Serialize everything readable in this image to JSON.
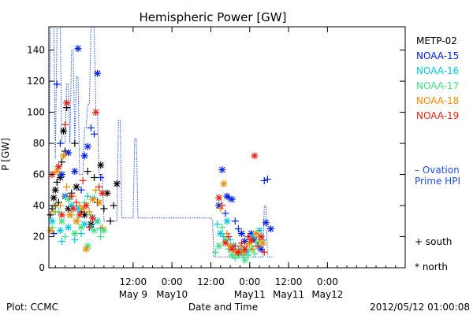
{
  "chart_data": {
    "type": "scatter",
    "title": "Hemispheric Power [GW]",
    "xlabel": "Date and Time",
    "ylabel": "P [GW]",
    "ylim": [
      0,
      155
    ],
    "xlim_hours": [
      -14,
      96
    ],
    "y_ticks": [
      0,
      20,
      40,
      60,
      80,
      100,
      120,
      140
    ],
    "x_ticks": [
      {
        "h": 12,
        "label": "12:00",
        "date": "May 9"
      },
      {
        "h": 24,
        "label": "0:00",
        "date": "May10"
      },
      {
        "h": 36,
        "label": "12:00",
        "date": ""
      },
      {
        "h": 48,
        "label": "0:00",
        "date": "May11"
      },
      {
        "h": 60,
        "label": "12:00",
        "date": "May11"
      },
      {
        "h": 72,
        "label": "0:00",
        "date": "May12"
      }
    ],
    "grid": false,
    "legend_position": "right",
    "symbols": {
      "south": "+",
      "north": "*"
    },
    "series": [
      {
        "name": "METP-02",
        "color": "#000000",
        "points": [
          [
            -13.5,
            34,
            "s"
          ],
          [
            -13,
            38,
            "s"
          ],
          [
            -12.5,
            45,
            "n"
          ],
          [
            -12,
            50,
            "n"
          ],
          [
            -11.5,
            55,
            "s"
          ],
          [
            -11,
            42,
            "s"
          ],
          [
            -10.5,
            58,
            "n"
          ],
          [
            -10,
            68,
            "s"
          ],
          [
            -9.5,
            88,
            "n"
          ],
          [
            -9,
            75,
            "s"
          ],
          [
            -8.5,
            103,
            "s"
          ],
          [
            -8,
            38,
            "n"
          ],
          [
            -7,
            48,
            "s"
          ],
          [
            -6,
            80,
            "s"
          ],
          [
            -5.5,
            52,
            "n"
          ],
          [
            -4,
            36,
            "s"
          ],
          [
            -3,
            34,
            "n"
          ],
          [
            -2,
            62,
            "s"
          ],
          [
            -1,
            28,
            "n"
          ],
          [
            0,
            58,
            "s"
          ],
          [
            1,
            42,
            "s"
          ],
          [
            2,
            66,
            "n"
          ],
          [
            3,
            38,
            "s"
          ],
          [
            4,
            48,
            "n"
          ],
          [
            5,
            30,
            "s"
          ],
          [
            6,
            40,
            "s"
          ],
          [
            7,
            54,
            "n"
          ]
        ]
      },
      {
        "name": "NOAA-15",
        "color": "#0020e0",
        "points": [
          [
            -12.5,
            22,
            "s"
          ],
          [
            -11.5,
            118,
            "s"
          ],
          [
            -10.5,
            80,
            "s"
          ],
          [
            -10,
            60,
            "n"
          ],
          [
            -9,
            46,
            "n"
          ],
          [
            -8,
            74,
            "n"
          ],
          [
            -7,
            46,
            "s"
          ],
          [
            -6,
            62,
            "n"
          ],
          [
            -5,
            141,
            "n"
          ],
          [
            -4,
            50,
            "s"
          ],
          [
            -3,
            72,
            "n"
          ],
          [
            -2,
            78,
            "n"
          ],
          [
            -1,
            90,
            "s"
          ],
          [
            0,
            86,
            "s"
          ],
          [
            1,
            125,
            "n"
          ],
          [
            2,
            58,
            "s"
          ],
          [
            38.5,
            40,
            "n"
          ],
          [
            39.5,
            63,
            "n"
          ],
          [
            40.5,
            35,
            "s"
          ],
          [
            41,
            46,
            "n"
          ],
          [
            41.5,
            45,
            "s"
          ],
          [
            42.5,
            44,
            "n"
          ],
          [
            43.5,
            30,
            "s"
          ],
          [
            44.5,
            25,
            "s"
          ],
          [
            45.5,
            22,
            "n"
          ],
          [
            46.5,
            17,
            "n"
          ],
          [
            47.5,
            20,
            "s"
          ],
          [
            48.5,
            22,
            "n"
          ],
          [
            49.5,
            18,
            "n"
          ],
          [
            50.5,
            14,
            "s"
          ],
          [
            51.5,
            12,
            "n"
          ],
          [
            52.5,
            56,
            "s"
          ],
          [
            53,
            29,
            "n"
          ],
          [
            53.5,
            57,
            "s"
          ],
          [
            54.5,
            25,
            "n"
          ]
        ]
      },
      {
        "name": "NOAA-16",
        "color": "#00c8e0",
        "points": [
          [
            -13,
            30,
            "n"
          ],
          [
            -12,
            36,
            "s"
          ],
          [
            -10.5,
            24,
            "n"
          ],
          [
            -10,
            17,
            "s"
          ],
          [
            -9,
            46,
            "s"
          ],
          [
            -8,
            26,
            "n"
          ],
          [
            -7,
            40,
            "n"
          ],
          [
            -6,
            18,
            "s"
          ],
          [
            -5,
            38,
            "n"
          ],
          [
            -4,
            22,
            "s"
          ],
          [
            -3,
            28,
            "n"
          ],
          [
            -2,
            46,
            "s"
          ],
          [
            -1,
            26,
            "n"
          ],
          [
            0,
            45,
            "s"
          ],
          [
            1,
            30,
            "n"
          ],
          [
            2,
            25,
            "s"
          ],
          [
            38,
            28,
            "s"
          ],
          [
            39,
            22,
            "n"
          ],
          [
            40,
            20,
            "s"
          ],
          [
            41,
            30,
            "n"
          ],
          [
            42,
            18,
            "s"
          ],
          [
            43,
            14,
            "n"
          ],
          [
            44,
            10,
            "s"
          ],
          [
            45,
            12,
            "n"
          ],
          [
            46,
            8,
            "s"
          ],
          [
            47,
            10,
            "n"
          ],
          [
            48,
            16,
            "s"
          ],
          [
            49,
            20,
            "n"
          ],
          [
            50,
            14,
            "s"
          ],
          [
            51,
            24,
            "n"
          ],
          [
            52,
            18,
            "s"
          ]
        ]
      },
      {
        "name": "NOAA-17",
        "color": "#40e080",
        "points": [
          [
            -13,
            26,
            "s"
          ],
          [
            -12,
            40,
            "n"
          ],
          [
            -11,
            36,
            "s"
          ],
          [
            -10,
            30,
            "n"
          ],
          [
            -9,
            20,
            "s"
          ],
          [
            -8,
            44,
            "n"
          ],
          [
            -7,
            34,
            "s"
          ],
          [
            -6,
            22,
            "n"
          ],
          [
            -5,
            30,
            "s"
          ],
          [
            -4,
            26,
            "n"
          ],
          [
            -3,
            42,
            "s"
          ],
          [
            -2,
            14,
            "n"
          ],
          [
            -1,
            34,
            "s"
          ],
          [
            0,
            24,
            "n"
          ],
          [
            1,
            30,
            "s"
          ],
          [
            2,
            20,
            "s"
          ],
          [
            3,
            24,
            "n"
          ],
          [
            37.5,
            10,
            "s"
          ],
          [
            38.5,
            14,
            "n"
          ],
          [
            39.5,
            26,
            "s"
          ],
          [
            40.5,
            18,
            "n"
          ],
          [
            41.5,
            12,
            "s"
          ],
          [
            42.5,
            8,
            "n"
          ],
          [
            43.5,
            6,
            "s"
          ],
          [
            44.5,
            8,
            "n"
          ],
          [
            45.5,
            10,
            "s"
          ],
          [
            46.5,
            5,
            "n"
          ],
          [
            47.5,
            8,
            "s"
          ],
          [
            48.5,
            12,
            "n"
          ],
          [
            49.5,
            9,
            "s"
          ],
          [
            50.5,
            16,
            "n"
          ]
        ]
      },
      {
        "name": "NOAA-18",
        "color": "#f08c00",
        "points": [
          [
            -13.5,
            24,
            "n"
          ],
          [
            -12.5,
            36,
            "s"
          ],
          [
            -11.5,
            62,
            "n"
          ],
          [
            -10.5,
            40,
            "s"
          ],
          [
            -9.5,
            72,
            "n"
          ],
          [
            -8.5,
            52,
            "s"
          ],
          [
            -7.5,
            34,
            "n"
          ],
          [
            -6.5,
            46,
            "s"
          ],
          [
            -5.5,
            30,
            "n"
          ],
          [
            -4.5,
            40,
            "s"
          ],
          [
            -3.5,
            38,
            "n"
          ],
          [
            -2.5,
            12,
            "n"
          ],
          [
            -1.5,
            36,
            "s"
          ],
          [
            -0.5,
            44,
            "n"
          ],
          [
            0.5,
            50,
            "s"
          ],
          [
            1.5,
            42,
            "n"
          ],
          [
            2.5,
            26,
            "s"
          ],
          [
            39,
            38,
            "s"
          ],
          [
            40,
            54,
            "n"
          ],
          [
            41,
            22,
            "s"
          ],
          [
            42,
            14,
            "n"
          ],
          [
            43,
            12,
            "s"
          ],
          [
            44,
            10,
            "n"
          ],
          [
            45,
            14,
            "s"
          ],
          [
            46,
            10,
            "n"
          ],
          [
            47,
            14,
            "s"
          ],
          [
            48,
            16,
            "n"
          ],
          [
            49,
            12,
            "s"
          ],
          [
            50,
            22,
            "n"
          ],
          [
            51,
            18,
            "s"
          ],
          [
            52,
            16,
            "n"
          ]
        ]
      },
      {
        "name": "NOAA-19",
        "color": "#e82010",
        "points": [
          [
            -13,
            60,
            "n"
          ],
          [
            -12,
            40,
            "s"
          ],
          [
            -11,
            65,
            "n"
          ],
          [
            -10,
            34,
            "n"
          ],
          [
            -9,
            92,
            "s"
          ],
          [
            -8.5,
            106,
            "n"
          ],
          [
            -7.5,
            46,
            "s"
          ],
          [
            -6.5,
            38,
            "n"
          ],
          [
            -5.5,
            42,
            "s"
          ],
          [
            -4.5,
            34,
            "n"
          ],
          [
            -3.5,
            56,
            "s"
          ],
          [
            -2.5,
            40,
            "n"
          ],
          [
            -1.5,
            26,
            "s"
          ],
          [
            -0.5,
            32,
            "n"
          ],
          [
            0.5,
            100,
            "n"
          ],
          [
            1.5,
            52,
            "s"
          ],
          [
            2.5,
            48,
            "n"
          ],
          [
            38.5,
            45,
            "n"
          ],
          [
            39.5,
            40,
            "s"
          ],
          [
            40.5,
            16,
            "n"
          ],
          [
            41.5,
            20,
            "s"
          ],
          [
            42.5,
            12,
            "n"
          ],
          [
            43.5,
            14,
            "s"
          ],
          [
            44.5,
            10,
            "n"
          ],
          [
            45.5,
            16,
            "s"
          ],
          [
            46.5,
            12,
            "n"
          ],
          [
            47.5,
            20,
            "s"
          ],
          [
            48.5,
            18,
            "n"
          ],
          [
            49.5,
            72,
            "n"
          ],
          [
            50.5,
            14,
            "s"
          ],
          [
            51.5,
            20,
            "n"
          ],
          [
            52.5,
            10,
            "s"
          ]
        ]
      }
    ],
    "ovation_line": {
      "name": "Ovation Prime HPI",
      "color": "#2050e0",
      "points": [
        [
          -14,
          70
        ],
        [
          -13.5,
          155
        ],
        [
          -12.5,
          155
        ],
        [
          -12,
          70
        ],
        [
          -11.5,
          155
        ],
        [
          -10.5,
          155
        ],
        [
          -10,
          80
        ],
        [
          -9,
          80
        ],
        [
          -8.5,
          118
        ],
        [
          -8,
          118
        ],
        [
          -7.5,
          80
        ],
        [
          -7,
          140
        ],
        [
          -6.5,
          140
        ],
        [
          -6,
          80
        ],
        [
          -5.5,
          123
        ],
        [
          -5,
          123
        ],
        [
          -4.5,
          60
        ],
        [
          -3.5,
          60
        ],
        [
          -3,
          90
        ],
        [
          -2.5,
          90
        ],
        [
          -2,
          105
        ],
        [
          -1.5,
          105
        ],
        [
          -1,
          155
        ],
        [
          0,
          155
        ],
        [
          0.5,
          100
        ],
        [
          1,
          100
        ],
        [
          1.5,
          60
        ],
        [
          2.5,
          60
        ],
        [
          3,
          30
        ],
        [
          7,
          30
        ],
        [
          7.5,
          95
        ],
        [
          8,
          95
        ],
        [
          8.5,
          32
        ],
        [
          12,
          32
        ],
        [
          12.5,
          83
        ],
        [
          13,
          83
        ],
        [
          13.5,
          32
        ],
        [
          36,
          32
        ],
        [
          36.5,
          30
        ],
        [
          37,
          7
        ],
        [
          52,
          7
        ],
        [
          52.5,
          40
        ],
        [
          53,
          40
        ],
        [
          53.5,
          7
        ],
        [
          55,
          7
        ]
      ]
    },
    "legend_items": [
      "METP-02",
      "NOAA-15",
      "NOAA-16",
      "NOAA-17",
      "NOAA-18",
      "NOAA-19"
    ],
    "ovation_label_1": "– Ovation",
    "ovation_label_2": "Prime HPI",
    "symbol_legend": {
      "south": "+ south",
      "north": "* north"
    },
    "footer": {
      "left": "Plot: CCMC",
      "right": "2012/05/12 01:00:08"
    }
  }
}
